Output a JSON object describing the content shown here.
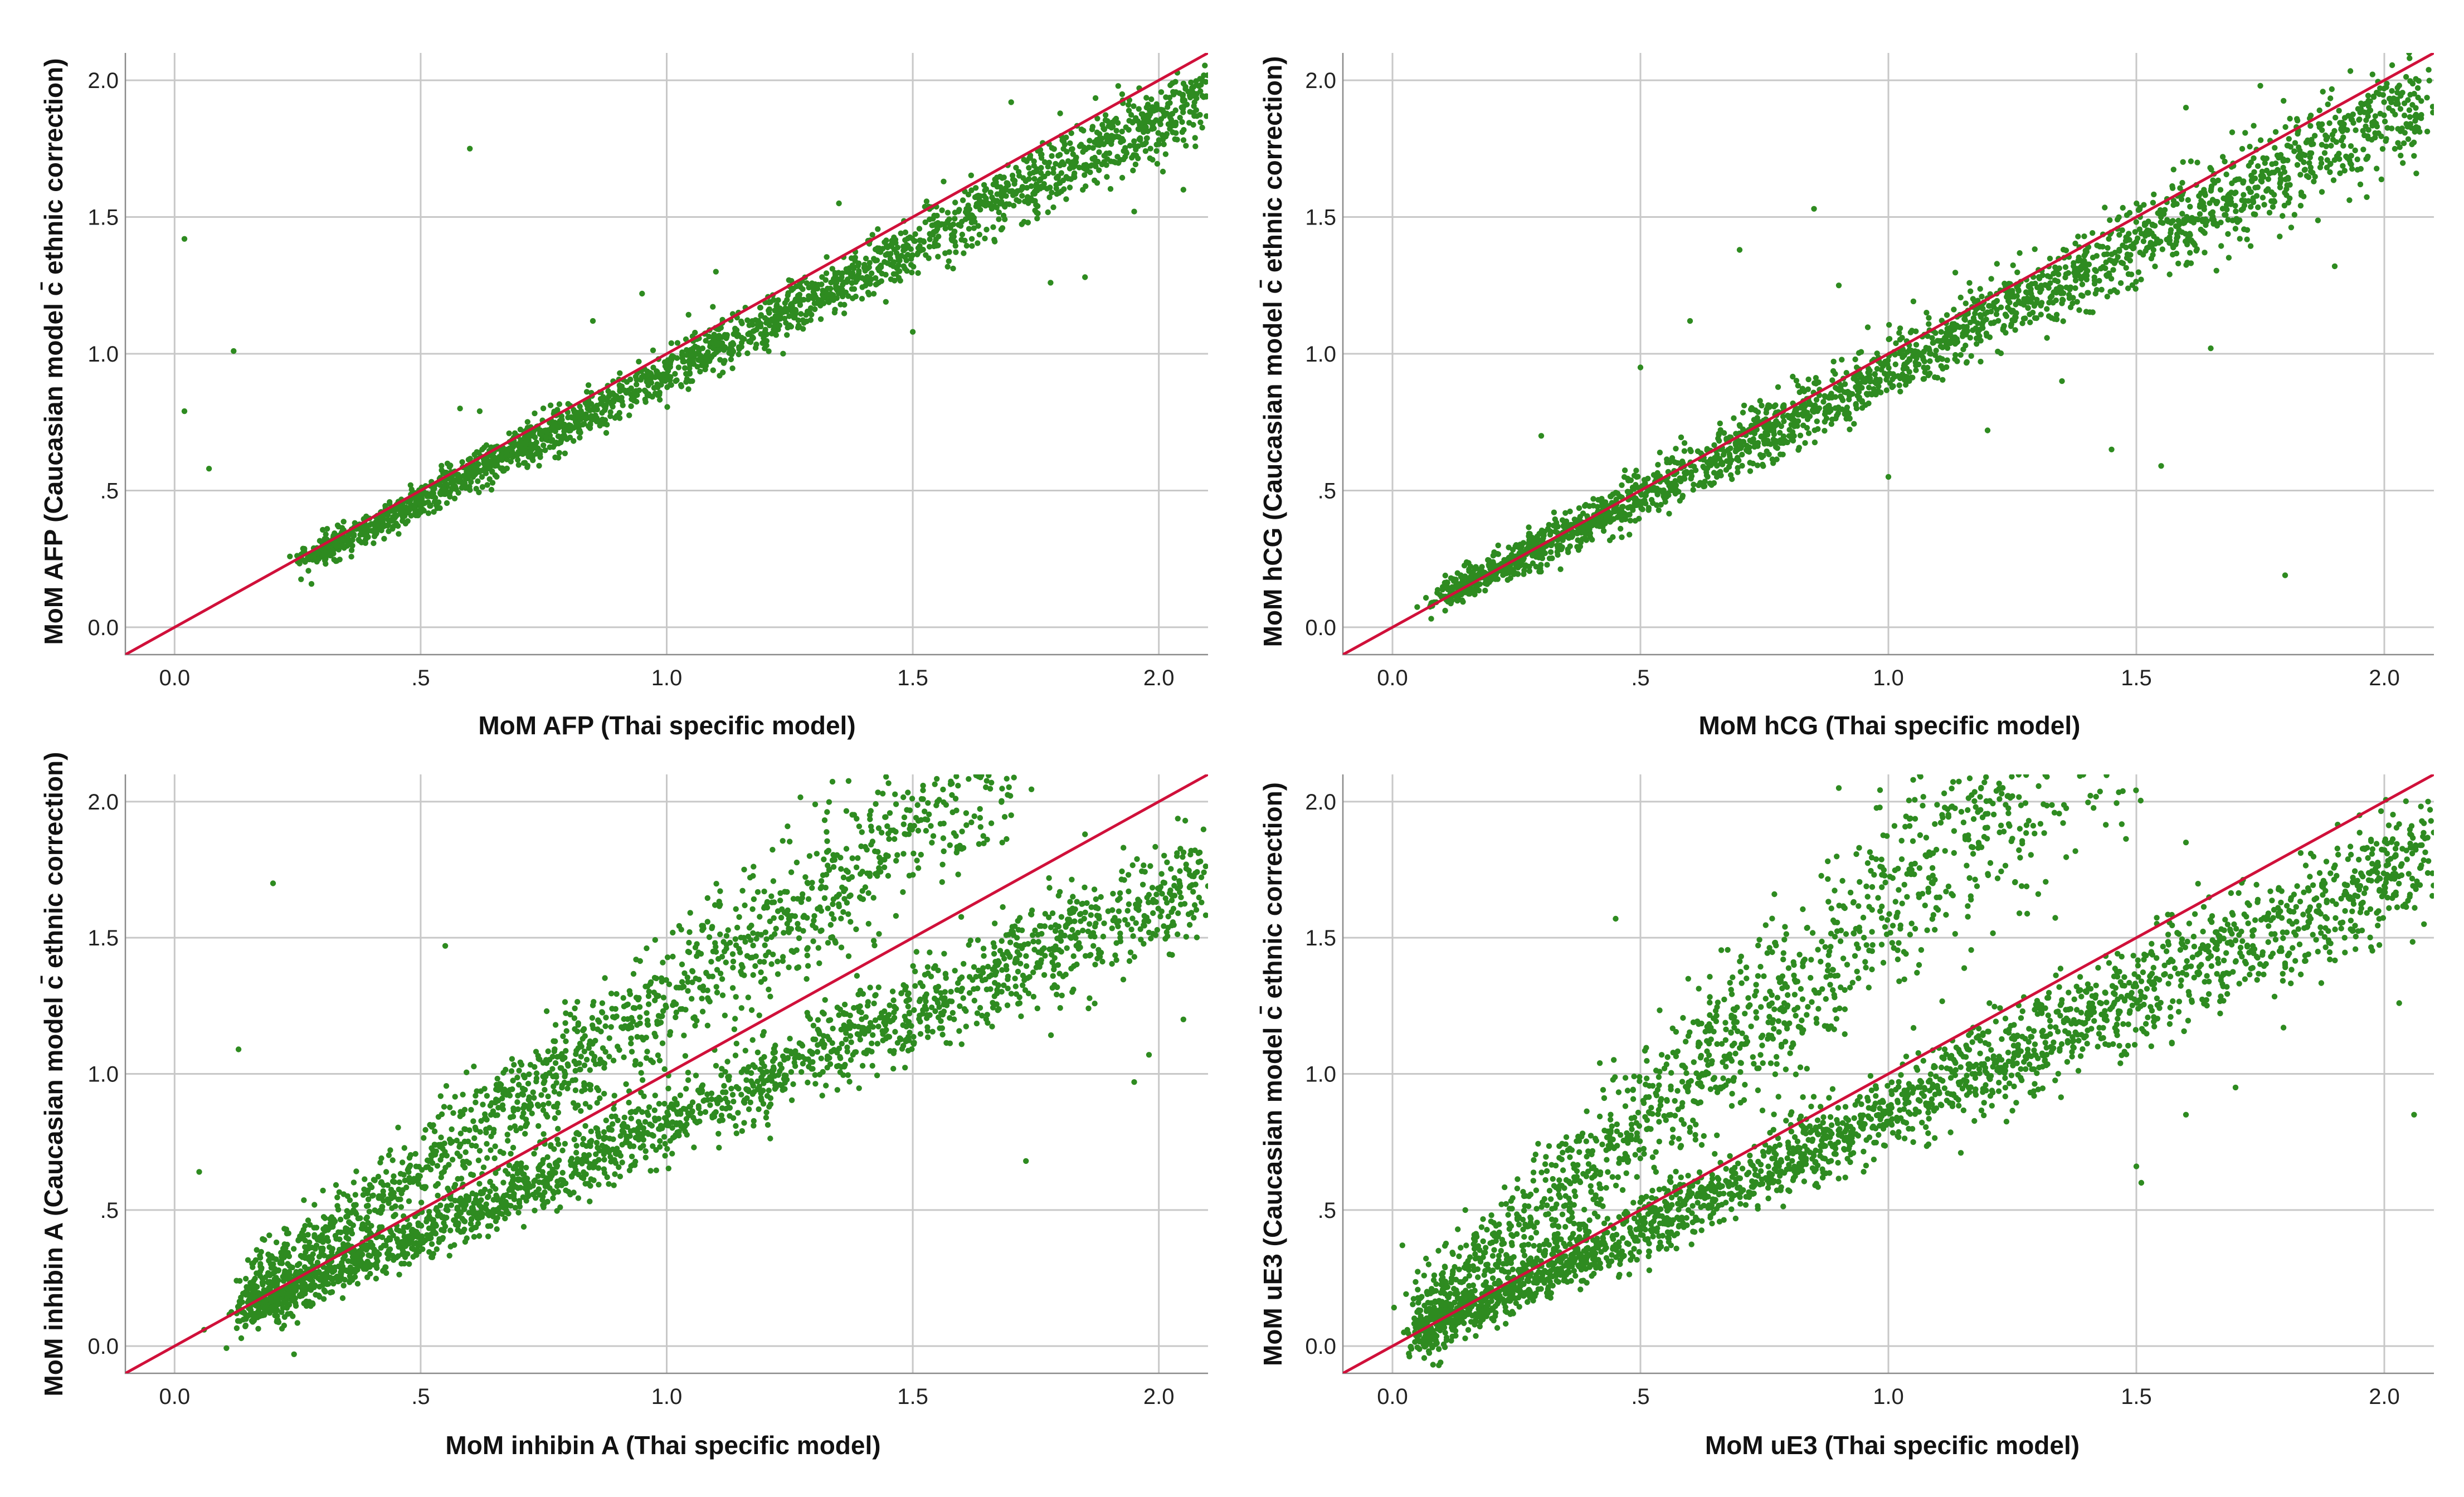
{
  "figure": {
    "description_none": "",
    "point_color": "#2e8b20",
    "reference_line_color": "#d0103a"
  },
  "chart_data": [
    {
      "type": "scatter",
      "id": "afp",
      "xlabel": "MoM AFP (Thai specific model)",
      "ylabel": "MoM AFP (Caucasian model c̄ ethnic correction)",
      "xlim": [
        -0.1,
        2.1
      ],
      "ylim": [
        -0.1,
        2.1
      ],
      "xticks": [
        {
          "v": 0.0,
          "label": "0.0"
        },
        {
          "v": 0.5,
          "label": ".5"
        },
        {
          "v": 1.0,
          "label": "1.0"
        },
        {
          "v": 1.5,
          "label": "1.5"
        },
        {
          "v": 2.0,
          "label": "2.0"
        }
      ],
      "yticks": [
        {
          "v": 0.0,
          "label": "0.0"
        },
        {
          "v": 0.5,
          "label": ".5"
        },
        {
          "v": 1.0,
          "label": "1.0"
        },
        {
          "v": 1.5,
          "label": "1.5"
        },
        {
          "v": 2.0,
          "label": "2.0"
        }
      ],
      "reference_line": {
        "from": [
          -0.1,
          -0.1
        ],
        "to": [
          2.1,
          2.1
        ]
      },
      "clusters": [
        {
          "x_range": [
            0.28,
            2.1
          ],
          "slope": 0.93,
          "intercept": 0.0,
          "spread": 0.04,
          "n": 2200
        }
      ],
      "points": [
        [
          0.02,
          1.42
        ],
        [
          0.12,
          1.01
        ],
        [
          0.02,
          0.79
        ],
        [
          0.07,
          0.58
        ],
        [
          0.6,
          1.75
        ],
        [
          1.85,
          1.28
        ],
        [
          1.78,
          1.26
        ],
        [
          0.31,
          0.36
        ],
        [
          0.29,
          0.27
        ],
        [
          0.34,
          0.33
        ],
        [
          0.42,
          0.4
        ],
        [
          0.45,
          0.38
        ],
        [
          0.38,
          0.31
        ],
        [
          0.25,
          0.24
        ],
        [
          0.58,
          0.8
        ],
        [
          0.62,
          0.79
        ],
        [
          0.85,
          1.12
        ],
        [
          0.78,
          0.62
        ],
        [
          1.5,
          1.08
        ],
        [
          1.35,
          1.55
        ],
        [
          1.7,
          1.92
        ],
        [
          1.95,
          1.52
        ],
        [
          2.05,
          1.6
        ],
        [
          1.62,
          1.42
        ],
        [
          0.95,
          1.22
        ],
        [
          1.1,
          1.3
        ]
      ]
    },
    {
      "type": "scatter",
      "id": "hcg",
      "xlabel": "MoM hCG (Thai specific model)",
      "ylabel": "MoM hCG (Caucasian model c̄ ethnic correction)",
      "xlim": [
        -0.1,
        2.1
      ],
      "ylim": [
        -0.1,
        2.1
      ],
      "xticks": [
        {
          "v": 0.0,
          "label": "0.0"
        },
        {
          "v": 0.5,
          "label": ".5"
        },
        {
          "v": 1.0,
          "label": "1.0"
        },
        {
          "v": 1.5,
          "label": "1.5"
        },
        {
          "v": 2.0,
          "label": "2.0"
        }
      ],
      "yticks": [
        {
          "v": 0.0,
          "label": "0.0"
        },
        {
          "v": 0.5,
          "label": ".5"
        },
        {
          "v": 1.0,
          "label": "1.0"
        },
        {
          "v": 1.5,
          "label": "1.5"
        },
        {
          "v": 2.0,
          "label": "2.0"
        }
      ],
      "reference_line": {
        "from": [
          -0.1,
          -0.1
        ],
        "to": [
          2.1,
          2.1
        ]
      },
      "clusters": [
        {
          "x_range": [
            0.1,
            2.1
          ],
          "slope": 0.92,
          "intercept": 0.02,
          "spread": 0.055,
          "n": 2300
        }
      ],
      "points": [
        [
          1.8,
          0.19
        ],
        [
          1.55,
          0.59
        ],
        [
          1.45,
          0.65
        ],
        [
          0.85,
          1.53
        ],
        [
          0.7,
          1.38
        ],
        [
          0.6,
          1.12
        ],
        [
          1.65,
          1.02
        ],
        [
          1.35,
          0.9
        ],
        [
          1.0,
          0.55
        ],
        [
          0.5,
          0.95
        ],
        [
          0.3,
          0.7
        ],
        [
          1.9,
          1.32
        ],
        [
          2.05,
          2.1
        ],
        [
          1.75,
          1.98
        ],
        [
          1.6,
          1.9
        ],
        [
          0.9,
          1.25
        ],
        [
          1.2,
          0.72
        ],
        [
          0.08,
          0.09
        ],
        [
          0.13,
          0.15
        ]
      ]
    },
    {
      "type": "scatter",
      "id": "inhibin",
      "xlabel": "MoM inhibin A (Thai specific model)",
      "ylabel": "MoM inhibin A (Caucasian model c̄ ethnic correction)",
      "xlim": [
        -0.1,
        2.1
      ],
      "ylim": [
        -0.1,
        2.1
      ],
      "xticks": [
        {
          "v": 0.0,
          "label": "0.0"
        },
        {
          "v": 0.5,
          "label": ".5"
        },
        {
          "v": 1.0,
          "label": "1.0"
        },
        {
          "v": 1.5,
          "label": "1.5"
        },
        {
          "v": 2.0,
          "label": "2.0"
        }
      ],
      "yticks": [
        {
          "v": 0.0,
          "label": "0.0"
        },
        {
          "v": 0.5,
          "label": ".5"
        },
        {
          "v": 1.0,
          "label": "1.0"
        },
        {
          "v": 1.5,
          "label": "1.5"
        },
        {
          "v": 2.0,
          "label": "2.0"
        }
      ],
      "reference_line": {
        "from": [
          -0.1,
          -0.1
        ],
        "to": [
          2.1,
          2.1
        ]
      },
      "clusters": [
        {
          "x_range": [
            0.15,
            2.1
          ],
          "slope": 0.82,
          "intercept": 0.0,
          "spread": 0.06,
          "n": 2000
        },
        {
          "x_range": [
            0.15,
            1.7
          ],
          "slope": 1.28,
          "intercept": 0.0,
          "spread": 0.11,
          "n": 1500
        }
      ],
      "points": [
        [
          0.2,
          1.7
        ],
        [
          0.13,
          1.09
        ],
        [
          0.05,
          0.64
        ],
        [
          0.55,
          1.47
        ],
        [
          1.73,
          0.68
        ],
        [
          1.95,
          0.97
        ],
        [
          1.98,
          1.07
        ],
        [
          2.05,
          1.2
        ],
        [
          0.06,
          0.06
        ],
        [
          0.22,
          0.14
        ],
        [
          0.24,
          0.11
        ],
        [
          1.3,
          1.58
        ],
        [
          1.55,
          2.0
        ],
        [
          1.7,
          1.95
        ],
        [
          1.85,
          1.88
        ]
      ]
    },
    {
      "type": "scatter",
      "id": "ue3",
      "xlabel": "MoM uE3 (Thai specific model)",
      "ylabel": "MoM uE3 (Caucasian model c̄ ethnic correction)",
      "xlim": [
        -0.1,
        2.1
      ],
      "ylim": [
        -0.1,
        2.1
      ],
      "xticks": [
        {
          "v": 0.0,
          "label": "0.0"
        },
        {
          "v": 0.5,
          "label": ".5"
        },
        {
          "v": 1.0,
          "label": "1.0"
        },
        {
          "v": 1.5,
          "label": "1.5"
        },
        {
          "v": 2.0,
          "label": "2.0"
        }
      ],
      "yticks": [
        {
          "v": 0.0,
          "label": "0.0"
        },
        {
          "v": 0.5,
          "label": ".5"
        },
        {
          "v": 1.0,
          "label": "1.0"
        },
        {
          "v": 1.5,
          "label": "1.5"
        },
        {
          "v": 2.0,
          "label": "2.0"
        }
      ],
      "reference_line": {
        "from": [
          -0.1,
          -0.1
        ],
        "to": [
          2.1,
          2.1
        ]
      },
      "clusters": [
        {
          "x_range": [
            0.05,
            2.1
          ],
          "slope": 0.86,
          "intercept": 0.0,
          "spread": 0.07,
          "n": 2300
        },
        {
          "x_range": [
            0.05,
            1.5
          ],
          "slope": 1.65,
          "intercept": 0.0,
          "spread": 0.17,
          "n": 1500
        }
      ],
      "points": [
        [
          0.02,
          0.37
        ],
        [
          0.45,
          1.57
        ],
        [
          1.5,
          0.66
        ],
        [
          1.51,
          0.6
        ],
        [
          1.6,
          0.85
        ],
        [
          1.7,
          0.95
        ],
        [
          1.8,
          1.4
        ],
        [
          1.92,
          1.5
        ],
        [
          2.03,
          1.26
        ],
        [
          2.06,
          0.85
        ],
        [
          2.08,
          1.55
        ],
        [
          0.9,
          2.05
        ],
        [
          1.05,
          2.08
        ],
        [
          1.25,
          2.02
        ],
        [
          1.6,
          1.85
        ],
        [
          1.88,
          1.7
        ],
        [
          1.95,
          1.95
        ]
      ]
    }
  ]
}
